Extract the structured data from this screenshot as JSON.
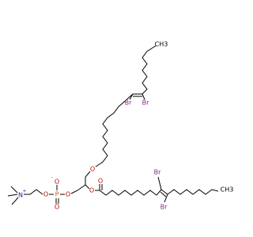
{
  "atoms": [
    {
      "label": "CH3"
    },
    {
      "label": "Br"
    },
    {
      "label": "Br"
    },
    {
      "label": "O"
    },
    {
      "label": "O"
    },
    {
      "label": "O"
    },
    {
      "label": "Br"
    },
    {
      "label": "Br"
    },
    {
      "label": "CH3"
    },
    {
      "label": "O",
      "charge": "-"
    },
    {
      "label": "P"
    },
    {
      "label": "O"
    },
    {
      "label": "O"
    },
    {
      "label": "O"
    },
    {
      "label": "N",
      "charge": "+"
    }
  ]
}
